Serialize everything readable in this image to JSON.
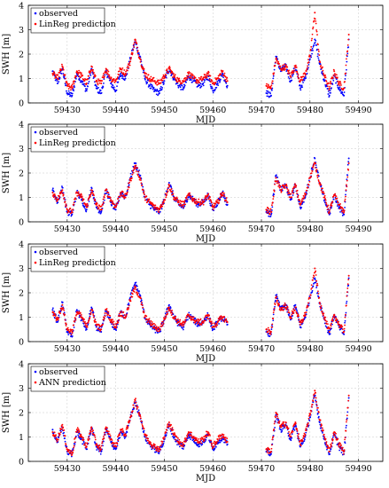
{
  "chart_data": [
    {
      "type": "scatter",
      "xlabel": "MJD",
      "ylabel": "SWH [m]",
      "xlim": [
        59422,
        59495
      ],
      "ylim": [
        0,
        4
      ],
      "xticks": [
        "59430",
        "59440",
        "59450",
        "59460",
        "59470",
        "59480",
        "59490"
      ],
      "yticks": [
        "0",
        "1",
        "2",
        "3",
        "4"
      ],
      "grid": true,
      "legend_position": "top-left",
      "series": [
        {
          "name": "observed",
          "color": "#0000ff",
          "x": [
            59427,
            59428,
            59429,
            59430,
            59431,
            59432,
            59433,
            59434,
            59435,
            59436,
            59437,
            59438,
            59439,
            59440,
            59441,
            59442,
            59443,
            59444,
            59445,
            59446,
            59447,
            59448,
            59449,
            59450,
            59451,
            59452,
            59453,
            59454,
            59455,
            59456,
            59457,
            59458,
            59459,
            59460,
            59461,
            59462,
            59463,
            59471,
            59472,
            59473,
            59474,
            59475,
            59476,
            59477,
            59478,
            59479,
            59480,
            59481,
            59482,
            59483,
            59484,
            59485,
            59486,
            59487,
            59488
          ],
          "y": [
            1.3,
            0.8,
            1.4,
            0.4,
            0.3,
            1.2,
            0.9,
            0.5,
            1.4,
            0.6,
            0.4,
            1.3,
            0.8,
            0.5,
            1.2,
            1.0,
            1.8,
            2.5,
            1.9,
            1.0,
            0.7,
            0.5,
            0.4,
            0.9,
            1.4,
            1.0,
            0.7,
            0.6,
            1.1,
            0.9,
            0.7,
            0.8,
            1.1,
            0.5,
            0.8,
            1.2,
            0.7,
            0.4,
            0.3,
            1.9,
            1.3,
            1.5,
            0.9,
            1.5,
            0.6,
            1.0,
            1.8,
            2.6,
            1.6,
            0.9,
            0.3,
            1.1,
            0.6,
            0.3,
            2.6
          ]
        },
        {
          "name": "LinReg prediction",
          "color": "#ff0000",
          "x": [
            59427,
            59428,
            59429,
            59430,
            59431,
            59432,
            59433,
            59434,
            59435,
            59436,
            59437,
            59438,
            59439,
            59440,
            59441,
            59442,
            59443,
            59444,
            59445,
            59446,
            59447,
            59448,
            59449,
            59450,
            59451,
            59452,
            59453,
            59454,
            59455,
            59456,
            59457,
            59458,
            59459,
            59460,
            59461,
            59462,
            59463,
            59471,
            59472,
            59473,
            59474,
            59475,
            59476,
            59477,
            59478,
            59479,
            59480,
            59481,
            59482,
            59483,
            59484,
            59485,
            59486,
            59487,
            59488
          ],
          "y": [
            1.2,
            1.0,
            1.5,
            0.7,
            0.6,
            1.3,
            1.1,
            0.8,
            1.5,
            0.9,
            0.8,
            1.4,
            1.0,
            0.9,
            1.4,
            1.2,
            1.7,
            2.6,
            1.8,
            1.2,
            1.0,
            0.9,
            0.8,
            1.1,
            1.4,
            1.1,
            0.9,
            0.9,
            1.2,
            1.0,
            0.9,
            1.0,
            1.2,
            0.8,
            1.0,
            1.3,
            0.9,
            0.7,
            0.6,
            1.8,
            1.4,
            1.5,
            1.1,
            1.5,
            0.9,
            1.2,
            1.9,
            3.7,
            1.7,
            1.1,
            0.6,
            1.3,
            0.8,
            0.6,
            2.8
          ]
        }
      ]
    },
    {
      "type": "scatter",
      "xlabel": "MJD",
      "ylabel": "SWH [m]",
      "xlim": [
        59422,
        59495
      ],
      "ylim": [
        0,
        4
      ],
      "xticks": [
        "59430",
        "59440",
        "59450",
        "59460",
        "59470",
        "59480",
        "59490"
      ],
      "yticks": [
        "0",
        "1",
        "2",
        "3",
        "4"
      ],
      "grid": true,
      "legend_position": "top-left",
      "series": [
        {
          "name": "observed",
          "color": "#0000ff",
          "x": [
            59427,
            59428,
            59429,
            59430,
            59431,
            59432,
            59433,
            59434,
            59435,
            59436,
            59437,
            59438,
            59439,
            59440,
            59441,
            59442,
            59443,
            59444,
            59445,
            59446,
            59447,
            59448,
            59449,
            59450,
            59451,
            59452,
            59453,
            59454,
            59455,
            59456,
            59457,
            59458,
            59459,
            59460,
            59461,
            59462,
            59463,
            59471,
            59472,
            59473,
            59474,
            59475,
            59476,
            59477,
            59478,
            59479,
            59480,
            59481,
            59482,
            59483,
            59484,
            59485,
            59486,
            59487,
            59488
          ],
          "y": [
            1.3,
            0.8,
            1.4,
            0.4,
            0.3,
            1.2,
            0.9,
            0.5,
            1.4,
            0.6,
            0.4,
            1.3,
            0.8,
            0.5,
            1.2,
            1.0,
            1.8,
            2.4,
            1.9,
            1.0,
            0.7,
            0.5,
            0.4,
            0.9,
            1.6,
            1.0,
            0.7,
            0.6,
            1.1,
            0.9,
            0.7,
            0.8,
            1.1,
            0.5,
            0.8,
            1.2,
            0.7,
            0.4,
            0.3,
            1.9,
            1.3,
            1.5,
            0.9,
            1.5,
            0.6,
            1.0,
            1.8,
            2.6,
            1.6,
            0.9,
            0.3,
            1.1,
            0.6,
            0.3,
            2.6
          ]
        },
        {
          "name": "LinReg prediction",
          "color": "#ff0000",
          "x": [
            59427,
            59428,
            59429,
            59430,
            59431,
            59432,
            59433,
            59434,
            59435,
            59436,
            59437,
            59438,
            59439,
            59440,
            59441,
            59442,
            59443,
            59444,
            59445,
            59446,
            59447,
            59448,
            59449,
            59450,
            59451,
            59452,
            59453,
            59454,
            59455,
            59456,
            59457,
            59458,
            59459,
            59460,
            59461,
            59462,
            59463,
            59471,
            59472,
            59473,
            59474,
            59475,
            59476,
            59477,
            59478,
            59479,
            59480,
            59481,
            59482,
            59483,
            59484,
            59485,
            59486,
            59487,
            59488
          ],
          "y": [
            1.2,
            0.9,
            1.3,
            0.5,
            0.4,
            1.2,
            1.0,
            0.6,
            1.3,
            0.7,
            0.5,
            1.3,
            0.9,
            0.6,
            1.2,
            1.0,
            1.7,
            2.3,
            1.8,
            1.0,
            0.8,
            0.6,
            0.5,
            0.9,
            1.5,
            1.0,
            0.8,
            0.7,
            1.1,
            0.9,
            0.8,
            0.8,
            1.1,
            0.6,
            0.8,
            1.2,
            0.8,
            0.5,
            0.4,
            1.8,
            1.3,
            1.5,
            1.0,
            1.5,
            0.7,
            1.1,
            1.8,
            2.4,
            1.6,
            1.0,
            0.4,
            1.1,
            0.7,
            0.4,
            2.4
          ]
        }
      ]
    },
    {
      "type": "scatter",
      "xlabel": "MJD",
      "ylabel": "SWH [m]",
      "xlim": [
        59422,
        59495
      ],
      "ylim": [
        0,
        4
      ],
      "xticks": [
        "59430",
        "59440",
        "59450",
        "59460",
        "59470",
        "59480",
        "59490"
      ],
      "yticks": [
        "0",
        "1",
        "2",
        "3",
        "4"
      ],
      "grid": true,
      "legend_position": "top-left",
      "series": [
        {
          "name": "observed",
          "color": "#0000ff",
          "x": [
            59427,
            59428,
            59429,
            59430,
            59431,
            59432,
            59433,
            59434,
            59435,
            59436,
            59437,
            59438,
            59439,
            59440,
            59441,
            59442,
            59443,
            59444,
            59445,
            59446,
            59447,
            59448,
            59449,
            59450,
            59451,
            59452,
            59453,
            59454,
            59455,
            59456,
            59457,
            59458,
            59459,
            59460,
            59461,
            59462,
            59463,
            59471,
            59472,
            59473,
            59474,
            59475,
            59476,
            59477,
            59478,
            59479,
            59480,
            59481,
            59482,
            59483,
            59484,
            59485,
            59486,
            59487,
            59488
          ],
          "y": [
            1.3,
            0.8,
            1.6,
            0.4,
            0.2,
            1.3,
            0.9,
            0.5,
            1.4,
            0.6,
            0.4,
            1.3,
            0.8,
            0.5,
            1.2,
            1.0,
            1.8,
            2.4,
            1.9,
            1.0,
            0.7,
            0.5,
            0.4,
            0.9,
            1.5,
            1.0,
            0.7,
            0.6,
            1.1,
            0.9,
            0.7,
            0.8,
            1.1,
            0.5,
            0.8,
            1.0,
            0.7,
            0.4,
            0.3,
            1.9,
            1.3,
            1.5,
            0.9,
            1.5,
            0.6,
            1.0,
            1.8,
            2.6,
            1.6,
            0.9,
            0.3,
            1.1,
            0.6,
            0.3,
            2.6
          ]
        },
        {
          "name": "LinReg prediction",
          "color": "#ff0000",
          "x": [
            59427,
            59428,
            59429,
            59430,
            59431,
            59432,
            59433,
            59434,
            59435,
            59436,
            59437,
            59438,
            59439,
            59440,
            59441,
            59442,
            59443,
            59444,
            59445,
            59446,
            59447,
            59448,
            59449,
            59450,
            59451,
            59452,
            59453,
            59454,
            59455,
            59456,
            59457,
            59458,
            59459,
            59460,
            59461,
            59462,
            59463,
            59471,
            59472,
            59473,
            59474,
            59475,
            59476,
            59477,
            59478,
            59479,
            59480,
            59481,
            59482,
            59483,
            59484,
            59485,
            59486,
            59487,
            59488
          ],
          "y": [
            1.2,
            0.9,
            1.5,
            0.5,
            0.4,
            1.2,
            1.0,
            0.6,
            1.3,
            0.7,
            0.5,
            1.3,
            0.9,
            0.6,
            1.2,
            1.0,
            1.7,
            2.2,
            1.8,
            1.0,
            0.8,
            0.6,
            0.5,
            0.9,
            1.4,
            1.0,
            0.8,
            0.7,
            1.1,
            0.9,
            0.8,
            0.8,
            1.1,
            0.6,
            0.8,
            1.0,
            0.8,
            0.5,
            0.4,
            1.8,
            1.3,
            1.5,
            1.0,
            1.4,
            0.7,
            1.1,
            1.8,
            3.0,
            1.6,
            1.0,
            0.4,
            1.1,
            0.7,
            0.4,
            2.7
          ]
        }
      ]
    },
    {
      "type": "scatter",
      "xlabel": "MJD",
      "ylabel": "SWH [m]",
      "xlim": [
        59422,
        59495
      ],
      "ylim": [
        0,
        4
      ],
      "xticks": [
        "59430",
        "59440",
        "59450",
        "59460",
        "59470",
        "59480",
        "59490"
      ],
      "yticks": [
        "0",
        "1",
        "2",
        "3",
        "4"
      ],
      "grid": true,
      "legend_position": "top-left",
      "series": [
        {
          "name": "observed",
          "color": "#0000ff",
          "x": [
            59427,
            59428,
            59429,
            59430,
            59431,
            59432,
            59433,
            59434,
            59435,
            59436,
            59437,
            59438,
            59439,
            59440,
            59441,
            59442,
            59443,
            59444,
            59445,
            59446,
            59447,
            59448,
            59449,
            59450,
            59451,
            59452,
            59453,
            59454,
            59455,
            59456,
            59457,
            59458,
            59459,
            59460,
            59461,
            59462,
            59463,
            59471,
            59472,
            59473,
            59474,
            59475,
            59476,
            59477,
            59478,
            59479,
            59480,
            59481,
            59482,
            59483,
            59484,
            59485,
            59486,
            59487,
            59488
          ],
          "y": [
            1.3,
            0.8,
            1.4,
            0.4,
            0.3,
            1.2,
            0.9,
            0.5,
            1.4,
            0.6,
            0.4,
            1.3,
            0.8,
            0.5,
            1.2,
            1.0,
            1.8,
            2.4,
            1.9,
            1.0,
            0.7,
            0.5,
            0.4,
            0.9,
            1.5,
            1.0,
            0.7,
            0.6,
            1.1,
            0.9,
            0.7,
            0.8,
            1.1,
            0.5,
            0.8,
            1.0,
            0.7,
            0.4,
            0.3,
            1.9,
            1.3,
            1.5,
            0.9,
            1.5,
            0.6,
            1.0,
            1.8,
            2.7,
            1.6,
            0.9,
            0.3,
            1.1,
            0.6,
            0.3,
            2.6
          ]
        },
        {
          "name": "ANN prediction",
          "color": "#ff0000",
          "x": [
            59427,
            59428,
            59429,
            59430,
            59431,
            59432,
            59433,
            59434,
            59435,
            59436,
            59437,
            59438,
            59439,
            59440,
            59441,
            59442,
            59443,
            59444,
            59445,
            59446,
            59447,
            59448,
            59449,
            59450,
            59451,
            59452,
            59453,
            59454,
            59455,
            59456,
            59457,
            59458,
            59459,
            59460,
            59461,
            59462,
            59463,
            59471,
            59472,
            59473,
            59474,
            59475,
            59476,
            59477,
            59478,
            59479,
            59480,
            59481,
            59482,
            59483,
            59484,
            59485,
            59486,
            59487,
            59488
          ],
          "y": [
            1.2,
            0.9,
            1.5,
            0.5,
            0.3,
            1.3,
            1.0,
            0.6,
            1.4,
            0.7,
            0.5,
            1.4,
            0.9,
            0.6,
            1.3,
            1.1,
            1.8,
            2.5,
            1.9,
            1.1,
            0.8,
            0.6,
            0.5,
            1.0,
            1.6,
            1.1,
            0.8,
            0.7,
            1.2,
            1.0,
            0.8,
            0.9,
            1.2,
            0.6,
            0.9,
            1.1,
            0.8,
            0.5,
            0.4,
            2.0,
            1.4,
            1.6,
            1.0,
            1.6,
            0.7,
            1.1,
            1.9,
            2.9,
            1.7,
            1.0,
            0.4,
            1.2,
            0.7,
            0.4,
            2.7
          ]
        }
      ]
    }
  ]
}
